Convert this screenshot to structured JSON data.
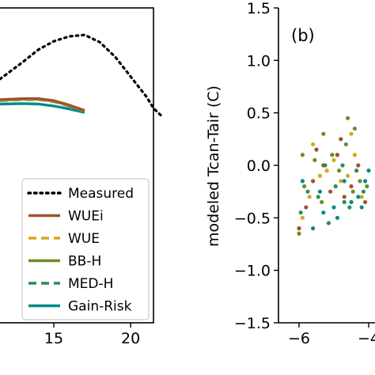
{
  "chart_data": [
    {
      "type": "line",
      "xlim": [
        11.5,
        22
      ],
      "x_ticks": [
        15,
        20
      ],
      "x_tick_labels": [
        "15",
        "20"
      ],
      "legend_position": "lower-right",
      "legend": [
        "Measured",
        "WUEi",
        "WUE",
        "BB-H",
        "MED-H",
        "Gain-Risk"
      ],
      "series": [
        {
          "name": "Measured",
          "color": "#000000",
          "dash": "dotted",
          "points": [
            [
              11.5,
              44.5
            ],
            [
              13,
              41
            ],
            [
              14,
              38.5
            ],
            [
              15,
              36.8
            ],
            [
              16,
              35.8
            ],
            [
              17,
              35.5
            ],
            [
              18,
              37
            ],
            [
              19,
              40
            ],
            [
              20,
              44
            ],
            [
              21,
              48
            ],
            [
              21.5,
              50.5
            ],
            [
              22,
              52
            ]
          ]
        },
        {
          "name": "WUEi",
          "color": "#a0522d",
          "dash": "solid",
          "points": [
            [
              11.5,
              48.7
            ],
            [
              13,
              48.5
            ],
            [
              14,
              48.5
            ],
            [
              15,
              48.9
            ],
            [
              16,
              49.8
            ],
            [
              17,
              50.9
            ]
          ]
        },
        {
          "name": "WUE",
          "color": "#daa520",
          "dash": "dashed",
          "points": [
            [
              11.5,
              48.8
            ],
            [
              13,
              48.6
            ],
            [
              14,
              48.6
            ],
            [
              15,
              49
            ],
            [
              16,
              49.9
            ],
            [
              17,
              51
            ]
          ]
        },
        {
          "name": "BB-H",
          "color": "#6b8e23",
          "dash": "solid",
          "points": [
            [
              11.5,
              48.8
            ],
            [
              13,
              48.6
            ],
            [
              14,
              48.6
            ],
            [
              15,
              49
            ],
            [
              16,
              49.9
            ],
            [
              17,
              51
            ]
          ]
        },
        {
          "name": "MED-H",
          "color": "#2e8b57",
          "dash": "dashed",
          "points": [
            [
              11.5,
              48.9
            ],
            [
              13,
              48.7
            ],
            [
              14,
              48.7
            ],
            [
              15,
              49.1
            ],
            [
              16,
              50
            ],
            [
              17,
              51.1
            ]
          ]
        },
        {
          "name": "Gain-Risk",
          "color": "#008b8b",
          "dash": "solid",
          "points": [
            [
              11.5,
              49.6
            ],
            [
              13,
              49.5
            ],
            [
              14,
              49.6
            ],
            [
              15,
              50
            ],
            [
              16,
              50.6
            ],
            [
              17,
              51.3
            ]
          ]
        }
      ]
    },
    {
      "type": "scatter",
      "panel_label": "(b)",
      "ylabel": "modeled Tcan-Tair (C)",
      "xlim": [
        -6.5,
        -3.2
      ],
      "ylim": [
        -1.5,
        1.5
      ],
      "x_ticks": [
        -6,
        -4
      ],
      "x_tick_labels": [
        "−6",
        "−4"
      ],
      "y_ticks": [
        -1.5,
        -1.0,
        -0.5,
        0.0,
        0.5,
        1.0,
        1.5
      ],
      "y_tick_labels": [
        "−1.5",
        "−1.0",
        "−0.5",
        "0.0",
        "0.5",
        "1.0",
        "1.5"
      ],
      "series": [
        {
          "name": "WUEi",
          "color": "#a0522d",
          "x": [
            -6,
            -5.8,
            -5.6,
            -5.3,
            -5.1,
            -4.9,
            -4.7,
            -4.5,
            -4.3,
            -4.1,
            -5.5,
            -4.8
          ],
          "y": [
            -0.6,
            -0.4,
            -0.15,
            0.0,
            -0.25,
            0.1,
            -0.3,
            -0.2,
            0.0,
            -0.35,
            0.15,
            0.25
          ]
        },
        {
          "name": "WUE",
          "color": "#daa520",
          "x": [
            -5.9,
            -5.7,
            -5.4,
            -5.2,
            -5.0,
            -4.8,
            -4.6,
            -4.4,
            -4.2,
            -5.6,
            -4.5
          ],
          "y": [
            -0.5,
            -0.3,
            -0.1,
            -0.05,
            0.05,
            -0.15,
            -0.1,
            0.1,
            -0.3,
            0.2,
            0.3
          ]
        },
        {
          "name": "BB-H",
          "color": "#6b8e23",
          "x": [
            -6,
            -5.85,
            -5.55,
            -5.35,
            -5.05,
            -4.85,
            -4.65,
            -4.45,
            -4.25,
            -4.05,
            -5.3,
            -4.6,
            -5.9,
            -4.4
          ],
          "y": [
            -0.65,
            -0.2,
            0.05,
            -0.35,
            0.1,
            -0.05,
            0.2,
            -0.25,
            -0.15,
            -0.2,
            0.3,
            0.45,
            0.1,
            0.35
          ]
        },
        {
          "name": "MED-H",
          "color": "#2e8b57",
          "x": [
            -5.95,
            -5.75,
            -5.45,
            -5.25,
            -4.95,
            -4.75,
            -4.55,
            -4.35,
            -4.15,
            -5.15,
            -4.7
          ],
          "y": [
            -0.45,
            -0.25,
            -0.3,
            0.0,
            -0.2,
            0.0,
            -0.4,
            -0.05,
            -0.25,
            -0.55,
            -0.35
          ]
        },
        {
          "name": "Gain-Risk",
          "color": "#008b8b",
          "x": [
            -5.9,
            -5.6,
            -5.3,
            -5.0,
            -4.7,
            -4.5,
            -4.3,
            -4.1,
            -4.0,
            -4.2,
            -5.4,
            -4.9
          ],
          "y": [
            -0.15,
            -0.6,
            -0.45,
            -0.4,
            -0.15,
            -0.35,
            -0.3,
            -0.15,
            -0.05,
            -0.4,
            -0.25,
            -0.5
          ]
        }
      ]
    }
  ]
}
